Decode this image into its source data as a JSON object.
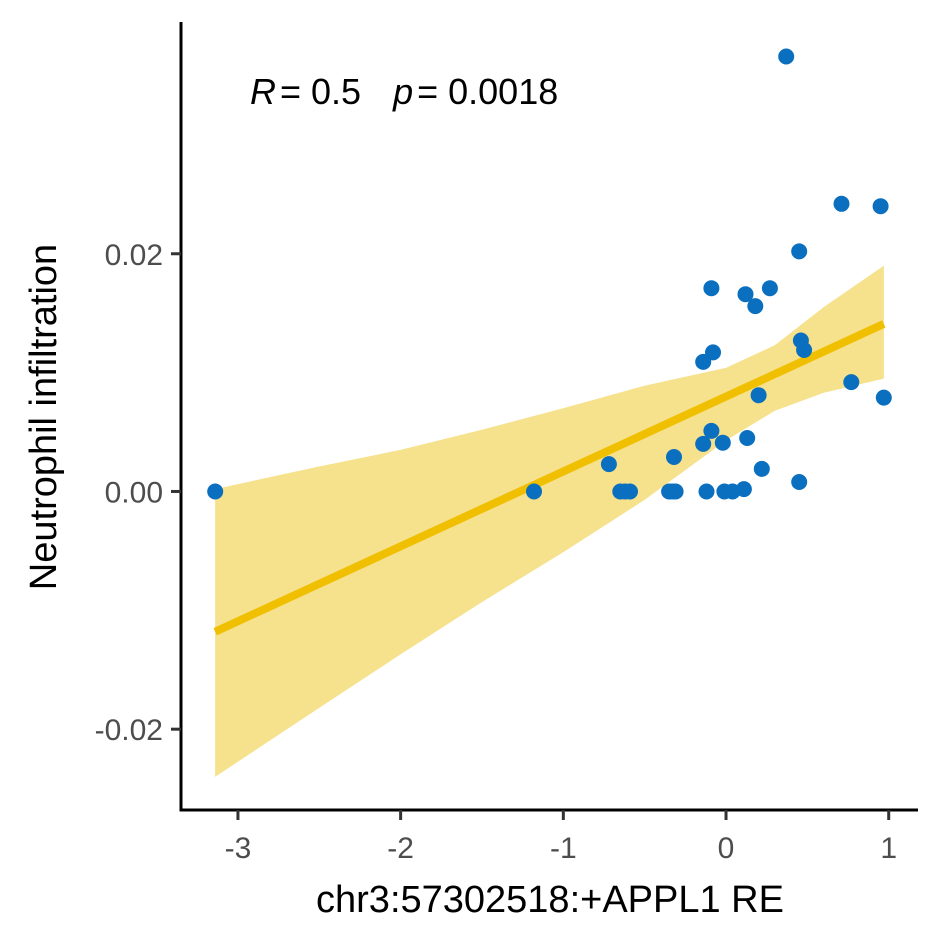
{
  "chart_data": {
    "type": "scatter",
    "title": "",
    "xlabel": "chr3:57302518:+APPL1 RE",
    "ylabel": "Neutrophil infiltration",
    "xlim": [
      -3.35,
      1.18
    ],
    "ylim": [
      -0.0268,
      0.0395
    ],
    "x_ticks": [
      -3,
      -2,
      -1,
      0,
      1
    ],
    "x_tick_labels": [
      "-3",
      "-2",
      "-1",
      "0",
      "1"
    ],
    "y_ticks": [
      -0.02,
      0.0,
      0.02
    ],
    "y_tick_labels": [
      "-0.02",
      "0.00",
      "0.02"
    ],
    "annotation": {
      "r_label": "R",
      "r_value": "= 0.5",
      "p_label": "p",
      "p_value": "= 0.0018"
    },
    "colors": {
      "points": "#0a6fbf",
      "fit_line": "#f0c000",
      "ci_band": "#f6df85"
    },
    "points": [
      {
        "x": -3.14,
        "y": 0.0
      },
      {
        "x": -1.18,
        "y": 0.0
      },
      {
        "x": -0.72,
        "y": 0.0023
      },
      {
        "x": -0.65,
        "y": 0.0
      },
      {
        "x": -0.62,
        "y": 0.0
      },
      {
        "x": -0.59,
        "y": 0.0
      },
      {
        "x": -0.35,
        "y": 0.0
      },
      {
        "x": -0.33,
        "y": 0.0
      },
      {
        "x": -0.31,
        "y": 0.0
      },
      {
        "x": -0.32,
        "y": 0.0029
      },
      {
        "x": -0.14,
        "y": 0.004
      },
      {
        "x": -0.14,
        "y": 0.0109
      },
      {
        "x": -0.12,
        "y": 0.0
      },
      {
        "x": -0.09,
        "y": 0.0171
      },
      {
        "x": -0.08,
        "y": 0.0117
      },
      {
        "x": -0.09,
        "y": 0.0051
      },
      {
        "x": -0.02,
        "y": 0.0041
      },
      {
        "x": -0.01,
        "y": 0.0
      },
      {
        "x": 0.04,
        "y": 0.0
      },
      {
        "x": 0.11,
        "y": 0.0002
      },
      {
        "x": 0.12,
        "y": 0.0166
      },
      {
        "x": 0.13,
        "y": 0.0045
      },
      {
        "x": 0.18,
        "y": 0.0156
      },
      {
        "x": 0.2,
        "y": 0.0081
      },
      {
        "x": 0.22,
        "y": 0.0019
      },
      {
        "x": 0.27,
        "y": 0.0171
      },
      {
        "x": 0.37,
        "y": 0.0366
      },
      {
        "x": 0.45,
        "y": 0.0202
      },
      {
        "x": 0.45,
        "y": 0.0008
      },
      {
        "x": 0.46,
        "y": 0.0127
      },
      {
        "x": 0.48,
        "y": 0.0119
      },
      {
        "x": 0.71,
        "y": 0.0242
      },
      {
        "x": 0.77,
        "y": 0.0092
      },
      {
        "x": 0.95,
        "y": 0.024
      },
      {
        "x": 0.97,
        "y": 0.0079
      }
    ],
    "fit_line": {
      "x": [
        -3.14,
        0.97
      ],
      "y": [
        -0.0118,
        0.0141
      ]
    },
    "ci_band": {
      "x": [
        -3.14,
        -2.5,
        -2.0,
        -1.5,
        -1.0,
        -0.5,
        0.0,
        0.3,
        0.6,
        0.97
      ],
      "lower": [
        -0.024,
        -0.0182,
        -0.0137,
        -0.0093,
        -0.0051,
        -0.0007,
        0.0043,
        0.0068,
        0.0083,
        0.0095
      ],
      "upper": [
        0.0002,
        0.0021,
        0.0035,
        0.0052,
        0.007,
        0.0089,
        0.0104,
        0.0123,
        0.0155,
        0.019
      ]
    }
  }
}
